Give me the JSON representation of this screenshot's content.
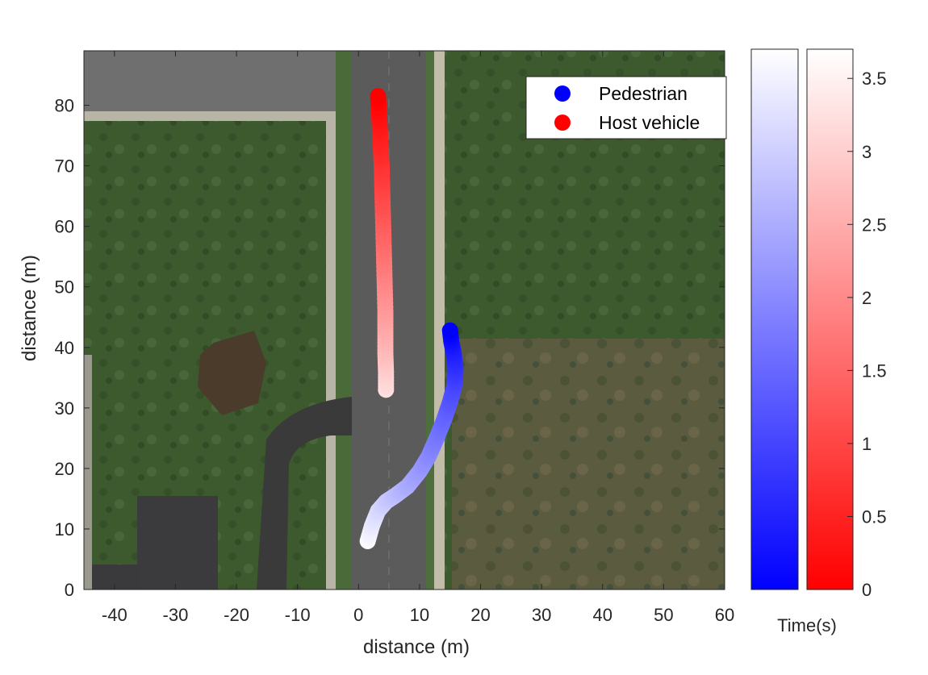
{
  "chart_data": {
    "type": "scatter",
    "background": "aerial satellite image",
    "xlabel": "distance  (m)",
    "ylabel": "distance  (m)",
    "xlim": [
      -45,
      60
    ],
    "ylim": [
      0,
      89
    ],
    "xticks": [
      "-40",
      "-30",
      "-20",
      "-10",
      "0",
      "10",
      "20",
      "30",
      "40",
      "50",
      "60"
    ],
    "yticks": [
      "0",
      "10",
      "20",
      "30",
      "40",
      "50",
      "60",
      "70",
      "80"
    ],
    "legend": {
      "placement": "top-right",
      "entries": [
        {
          "label": "Pedestrian",
          "color": "#0000ff"
        },
        {
          "label": "Host vehicle",
          "color": "#ff0000"
        }
      ]
    },
    "series": [
      {
        "name": "Pedestrian",
        "color": "#0000ff",
        "points": [
          {
            "x": 1.5,
            "y": 8,
            "t": 3.65
          },
          {
            "x": 2.2,
            "y": 10.5,
            "t": 3.4
          },
          {
            "x": 3.2,
            "y": 13,
            "t": 3.15
          },
          {
            "x": 4.5,
            "y": 14.5,
            "t": 2.95
          },
          {
            "x": 6.0,
            "y": 15.5,
            "t": 2.75
          },
          {
            "x": 8.0,
            "y": 17,
            "t": 2.5
          },
          {
            "x": 10.0,
            "y": 19.5,
            "t": 2.25
          },
          {
            "x": 11.5,
            "y": 22,
            "t": 2.0
          },
          {
            "x": 12.8,
            "y": 25,
            "t": 1.75
          },
          {
            "x": 14.0,
            "y": 28,
            "t": 1.5
          },
          {
            "x": 15.0,
            "y": 31,
            "t": 1.25
          },
          {
            "x": 15.8,
            "y": 34,
            "t": 1.0
          },
          {
            "x": 15.9,
            "y": 36.5,
            "t": 0.75
          },
          {
            "x": 15.6,
            "y": 39,
            "t": 0.5
          },
          {
            "x": 15.2,
            "y": 41,
            "t": 0.25
          },
          {
            "x": 15.0,
            "y": 42.8,
            "t": 0.0
          }
        ]
      },
      {
        "name": "Host vehicle",
        "color": "#ff0000",
        "points": [
          {
            "x": 3.2,
            "y": 81.5,
            "t": 0.0
          },
          {
            "x": 3.4,
            "y": 78,
            "t": 0.25
          },
          {
            "x": 3.6,
            "y": 74,
            "t": 0.5
          },
          {
            "x": 3.8,
            "y": 70,
            "t": 0.75
          },
          {
            "x": 3.9,
            "y": 66,
            "t": 1.0
          },
          {
            "x": 4.0,
            "y": 62,
            "t": 1.25
          },
          {
            "x": 4.1,
            "y": 58,
            "t": 1.5
          },
          {
            "x": 4.2,
            "y": 54,
            "t": 1.75
          },
          {
            "x": 4.3,
            "y": 50,
            "t": 2.0
          },
          {
            "x": 4.4,
            "y": 46,
            "t": 2.25
          },
          {
            "x": 4.4,
            "y": 42.5,
            "t": 2.5
          },
          {
            "x": 4.4,
            "y": 39,
            "t": 2.75
          },
          {
            "x": 4.5,
            "y": 36,
            "t": 3.0
          },
          {
            "x": 4.5,
            "y": 33,
            "t": 3.25
          }
        ]
      }
    ],
    "colorbars": [
      {
        "name": "Pedestrian",
        "from": "#0000ff",
        "to": "#ffffff"
      },
      {
        "name": "Host vehicle",
        "from": "#ff0000",
        "to": "#ffffff"
      }
    ],
    "colorbar_ticks": [
      "0",
      "0.5",
      "1",
      "1.5",
      "2",
      "2.5",
      "3",
      "3.5"
    ],
    "colorbar_range": [
      0,
      3.7
    ],
    "colorbar_label": "Time(s)"
  }
}
